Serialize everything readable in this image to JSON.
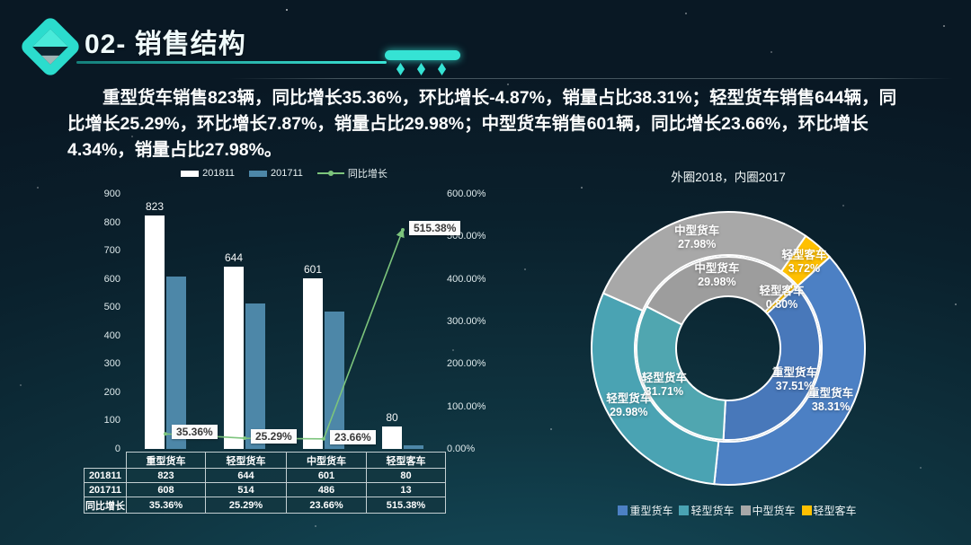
{
  "slide": {
    "title": "02- 销售结构",
    "summary": "重型货车销售823辆，同比增长35.36%，环比增长-4.87%，销量占比38.31%；轻型货车销售644辆，同比增长25.29%，环比增长7.87%，销量占比29.98%；中型货车销售601辆，同比增长23.66%，环比增长4.34%，销量占比27.98%。"
  },
  "colors": {
    "accent_cyan": "#35e3d4",
    "bar_2018": "#ffffff",
    "bar_2017": "#4d87a8",
    "growth_line": "#7cc47c",
    "donut_outer": [
      "#4c80c4",
      "#4aa3b3",
      "#a8a8a8",
      "#ffc000"
    ],
    "donut_inner": [
      "#4878ba",
      "#50a6b0",
      "#9d9d9d",
      "#f2b800"
    ],
    "legend_swatches": [
      "#4c80c4",
      "#4aa3b3",
      "#a8a8a8",
      "#ffc000"
    ]
  },
  "chart_data": [
    {
      "id": "sales-bar-line-combo",
      "type": "bar",
      "categories": [
        "重型货车",
        "轻型货车",
        "中型货车",
        "轻型客车"
      ],
      "series": [
        {
          "name": "201811",
          "type": "bar",
          "values": [
            823,
            644,
            601,
            80
          ]
        },
        {
          "name": "201711",
          "type": "bar",
          "values": [
            608,
            514,
            486,
            13
          ]
        },
        {
          "name": "同比增长",
          "type": "line",
          "axis": "right",
          "unit": "%",
          "values": [
            35.36,
            25.29,
            23.66,
            515.38
          ]
        }
      ],
      "bar_labels": [
        "823",
        "644",
        "601",
        "80"
      ],
      "line_point_labels": [
        "35.36%",
        "25.29%",
        "23.66%",
        "515.38%"
      ],
      "left_axis": {
        "min": 0,
        "max": 900,
        "step": 100,
        "ticks": [
          "900",
          "800",
          "700",
          "600",
          "500",
          "400",
          "300",
          "200",
          "100",
          "0"
        ]
      },
      "right_axis": {
        "min": 0,
        "max": 600,
        "step": 100,
        "ticks": [
          "600.00%",
          "500.00%",
          "400.00%",
          "300.00%",
          "200.00%",
          "100.00%",
          "0.00%"
        ]
      },
      "legend": [
        "201811",
        "201711",
        "同比增长"
      ],
      "legend_position": "top"
    },
    {
      "id": "sales-share-double-donut",
      "type": "pie",
      "title": "外圈2018，内圈2017",
      "start_angle_deg": 48,
      "categories": [
        "重型货车",
        "轻型货车",
        "中型货车",
        "轻型客车"
      ],
      "rings": [
        {
          "name": "2018",
          "position": "outer",
          "values_pct": [
            38.31,
            29.98,
            27.98,
            3.72
          ]
        },
        {
          "name": "2017",
          "position": "inner",
          "values_pct": [
            37.51,
            31.71,
            29.98,
            0.8
          ]
        }
      ],
      "legend": [
        "重型货车",
        "轻型货车",
        "中型货车",
        "轻型客车"
      ],
      "legend_position": "bottom"
    }
  ],
  "table": {
    "col_headers": [
      "",
      "重型货车",
      "轻型货车",
      "中型货车",
      "轻型客车"
    ],
    "rows": [
      {
        "label": "201811",
        "cells": [
          "823",
          "644",
          "601",
          "80"
        ]
      },
      {
        "label": "201711",
        "cells": [
          "608",
          "514",
          "486",
          "13"
        ]
      },
      {
        "label": "同比增长",
        "cells": [
          "35.36%",
          "25.29%",
          "23.66%",
          "515.38%"
        ]
      }
    ]
  }
}
